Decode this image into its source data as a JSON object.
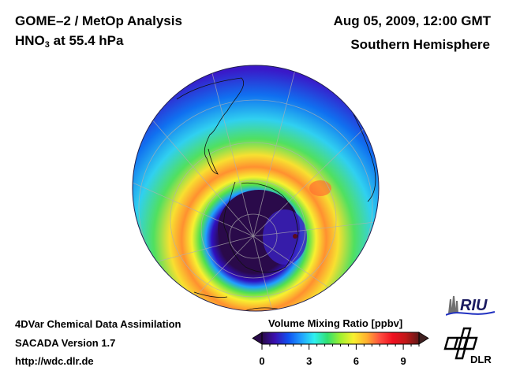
{
  "header": {
    "title_line1": "GOME–2 / MetOp Analysis",
    "title_species": "HNO",
    "title_subscript": "3",
    "title_level": " at 55.4 hPa",
    "datetime": "Aug 05, 2009, 12:00 GMT",
    "region": "Southern Hemisphere"
  },
  "footer": {
    "line1": "4DVar Chemical Data Assimilation",
    "line2": "SACADA Version 1.7",
    "line3": "http://wdc.dlr.de"
  },
  "colorbar": {
    "title": "Volume Mixing Ratio [ppbv]",
    "min": 0,
    "max": 10,
    "ticks": [
      "0",
      "3",
      "6",
      "9"
    ],
    "colors": [
      "#2a0a4a",
      "#3a10b0",
      "#1050f0",
      "#20a0ff",
      "#30f0f0",
      "#30e070",
      "#a0f030",
      "#f8f030",
      "#ffb030",
      "#ff5040",
      "#f01020",
      "#c01818",
      "#601818"
    ]
  },
  "logos": {
    "riu": "RIU",
    "dlr": "DLR"
  },
  "map": {
    "projection": "orthographic",
    "hemisphere": "south",
    "field": "HNO3",
    "vortex_core_ppbv": 0.3,
    "collar_max_ppbv": 8.5
  }
}
